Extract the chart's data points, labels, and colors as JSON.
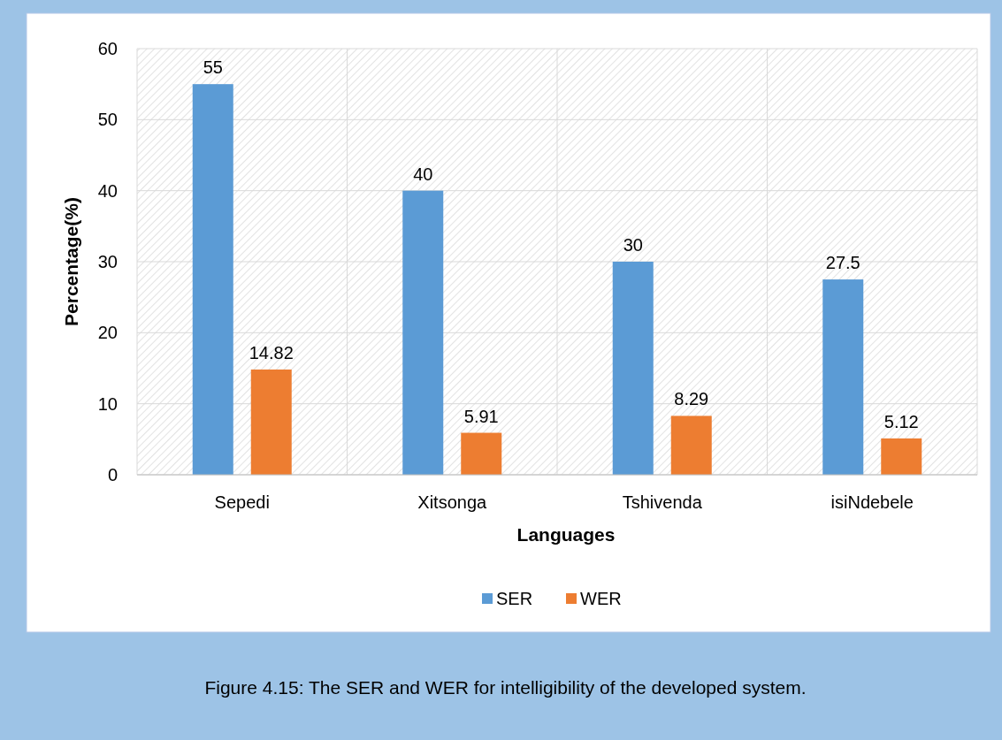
{
  "chart_data": {
    "type": "bar",
    "xlabel": "Languages",
    "ylabel": "Percentage(%)",
    "categories": [
      "Sepedi",
      "Xitsonga",
      "Tshivenda",
      "isiNdebele"
    ],
    "series": [
      {
        "name": "SER",
        "color": "#5b9bd5",
        "values": [
          55,
          40,
          30,
          27.5
        ]
      },
      {
        "name": "WER",
        "color": "#ed7d31",
        "values": [
          14.82,
          5.91,
          8.29,
          5.12
        ]
      }
    ],
    "ylim": [
      0,
      60
    ],
    "yticks": [
      0,
      10,
      20,
      30,
      40,
      50,
      60
    ],
    "grid": true,
    "legend": "bottom",
    "data_labels": true,
    "annotations": [
      "Figure 4.15: The SER and WER for intelligibility of the developed system."
    ]
  }
}
